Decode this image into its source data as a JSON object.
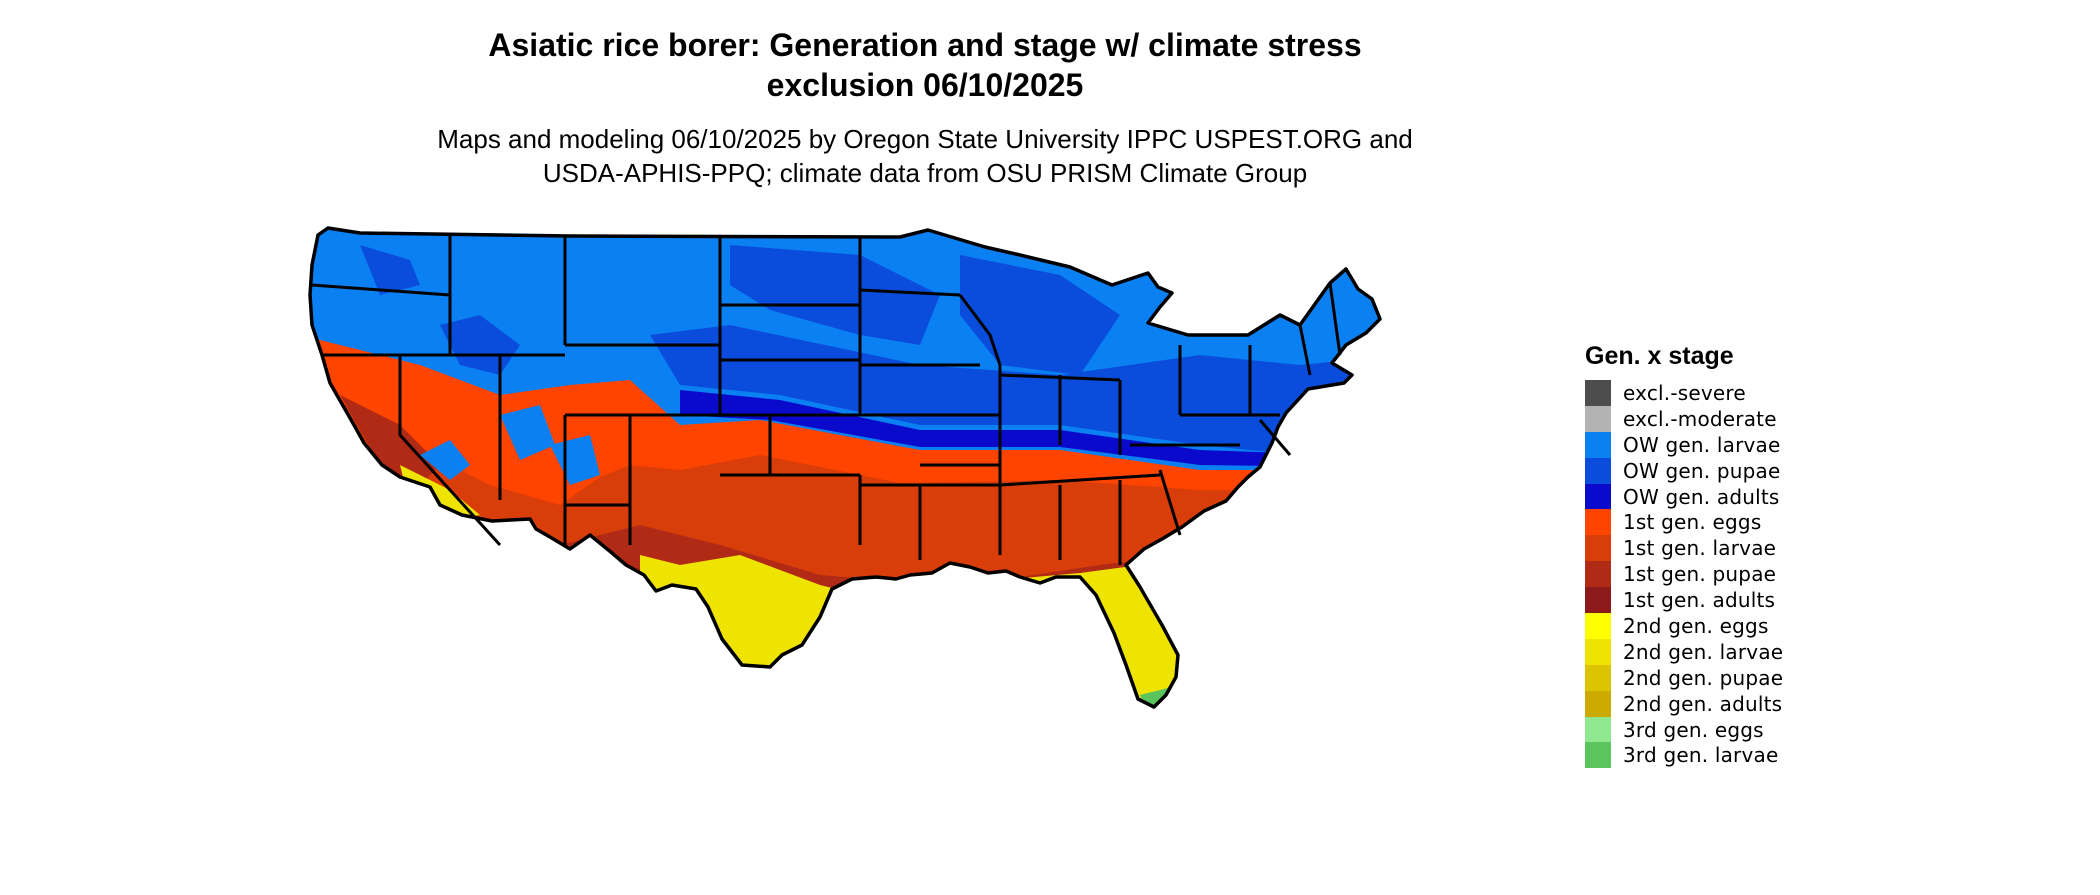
{
  "header": {
    "title_line1": "Asiatic rice borer: Generation and stage w/ climate stress",
    "title_line2": "exclusion 06/10/2025",
    "subtitle_line1": "Maps and modeling 06/10/2025 by Oregon State University IPPC USPEST.ORG and",
    "subtitle_line2": "USDA-APHIS-PPQ; climate data from OSU PRISM Climate Group"
  },
  "legend": {
    "title": "Gen. x stage",
    "items": [
      {
        "label": "excl.-severe",
        "color": "#4d4d4d"
      },
      {
        "label": "excl.-moderate",
        "color": "#b3b3b3"
      },
      {
        "label": "OW gen. larvae",
        "color": "#0a80f2"
      },
      {
        "label": "OW gen. pupae",
        "color": "#0a4ddc"
      },
      {
        "label": "OW gen. adults",
        "color": "#0a0acc"
      },
      {
        "label": "1st gen. eggs",
        "color": "#ff4400"
      },
      {
        "label": "1st gen. larvae",
        "color": "#d93d0a"
      },
      {
        "label": "1st gen. pupae",
        "color": "#b02a15"
      },
      {
        "label": "1st gen. adults",
        "color": "#8c1a1a"
      },
      {
        "label": "2nd gen. eggs",
        "color": "#ffff00"
      },
      {
        "label": "2nd gen. larvae",
        "color": "#eee400"
      },
      {
        "label": "2nd gen. pupae",
        "color": "#dcc400"
      },
      {
        "label": "2nd gen. adults",
        "color": "#ccaa00"
      },
      {
        "label": "3rd gen. eggs",
        "color": "#8fe88f"
      },
      {
        "label": "3rd gen. larvae",
        "color": "#5cc45c"
      }
    ]
  }
}
